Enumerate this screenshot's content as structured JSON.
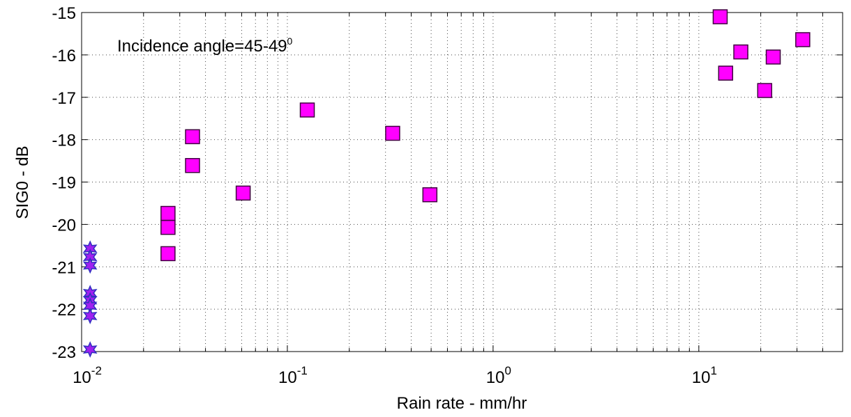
{
  "chart_data": {
    "type": "scatter",
    "log_x": true,
    "grid": true,
    "annotation": {
      "text": "Incidence angle=45-49",
      "superscript": "0"
    },
    "xlabel": "Rain rate - mm/hr",
    "ylabel": "SIG0 - dB",
    "xlim": [
      0.01,
      50
    ],
    "ylim": [
      -23,
      -15
    ],
    "xticks": [
      {
        "value": 0.01,
        "label": "10",
        "power": "-2"
      },
      {
        "value": 0.1,
        "label": "10",
        "power": "-1"
      },
      {
        "value": 1,
        "label": "10",
        "power": "0"
      },
      {
        "value": 10,
        "label": "10",
        "power": "1"
      }
    ],
    "yticks": [
      -23,
      -22,
      -21,
      -20,
      -19,
      -18,
      -17,
      -16,
      -15
    ],
    "series": [
      {
        "marker": "star",
        "color": "#a020f0",
        "stroke": "#3030c0",
        "x": [
          0.011,
          0.011,
          0.011,
          0.011,
          0.011,
          0.011,
          0.011,
          0.011
        ],
        "values": [
          -20.57,
          -20.77,
          -20.97,
          -21.62,
          -21.79,
          -21.92,
          -22.16,
          -22.95
        ]
      },
      {
        "marker": "square",
        "color": "#ff00ff",
        "stroke": "#400040",
        "x": [
          0.0263,
          0.0263,
          0.0263,
          0.0346,
          0.0346,
          0.061,
          0.125,
          0.325,
          0.493,
          12.7,
          13.5,
          16.0,
          20.9,
          23.0,
          32.0
        ],
        "values": [
          -19.74,
          -20.07,
          -20.69,
          -17.93,
          -18.61,
          -19.26,
          -17.3,
          -17.85,
          -19.3,
          -15.1,
          -16.43,
          -15.93,
          -16.84,
          -16.05,
          -15.64
        ]
      }
    ]
  }
}
